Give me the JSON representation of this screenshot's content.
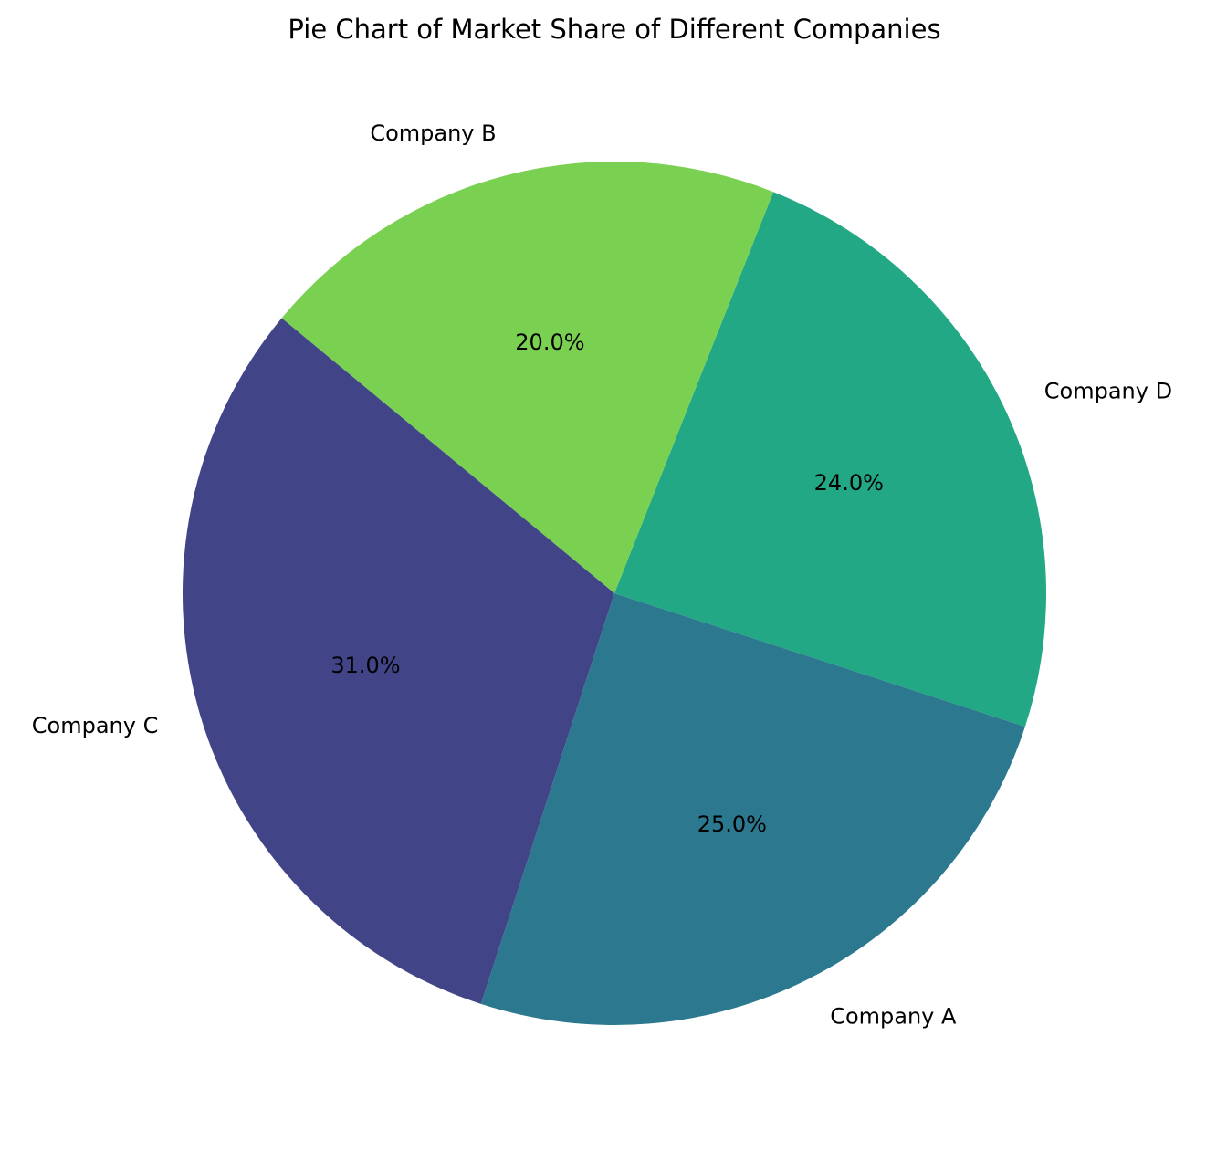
{
  "chart_data": {
    "type": "pie",
    "title": "Pie Chart of Market Share of Different Companies",
    "categories": [
      "Company A",
      "Company B",
      "Company C",
      "Company D"
    ],
    "values": [
      25.0,
      20.0,
      31.0,
      24.0
    ],
    "percent_labels": [
      "25.0%",
      "20.0%",
      "31.0%",
      "24.0%"
    ],
    "colors": [
      "#2c788e",
      "#7ad151",
      "#414487",
      "#22a884"
    ],
    "slice_order": [
      "Company D",
      "Company B",
      "Company C",
      "Company A"
    ],
    "start_angle_deg": -18,
    "direction": "counterclockwise",
    "legend": "none"
  }
}
